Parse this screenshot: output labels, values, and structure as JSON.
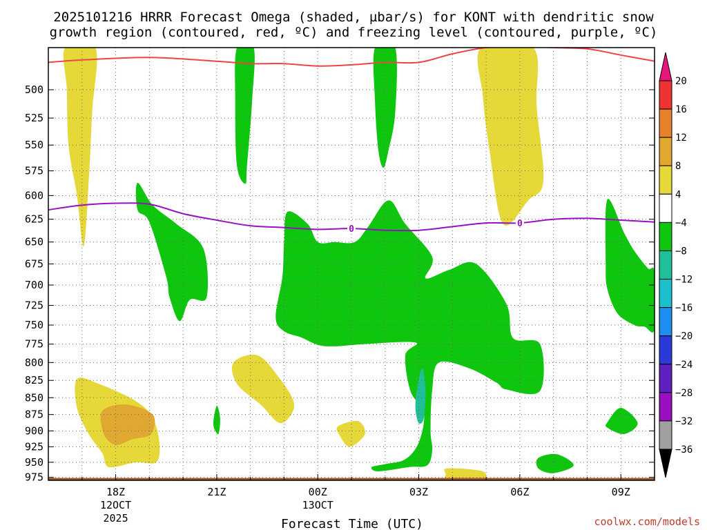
{
  "title_line1": "2025101216 HRRR Forecast Omega (shaded, µbar/s) for KONT with dendritic snow",
  "title_line2": "growth region (contoured, red, ºC) and freezing level (contoured, purple, ºC)",
  "credit": "coolwx.com/models",
  "chart_data": {
    "type": "contour",
    "title": "2025101216 HRRR Forecast Omega (shaded, µbar/s) for KONT with dendritic snow growth region (contoured, red, ºC) and freezing level (contoured, purple, ºC)",
    "xlabel": "Forecast Time (UTC)",
    "ylabel": "",
    "x_unit": "hours since 2025-10-12 16Z",
    "xlim": [
      0,
      18
    ],
    "ylim_hPa": [
      980,
      465
    ],
    "grid": true,
    "x_ticks": [
      {
        "x": 2,
        "lines": [
          "18Z",
          "12OCT",
          "2025"
        ]
      },
      {
        "x": 5,
        "lines": [
          "21Z"
        ]
      },
      {
        "x": 8,
        "lines": [
          "00Z",
          "13OCT"
        ]
      },
      {
        "x": 11,
        "lines": [
          "03Z"
        ]
      },
      {
        "x": 14,
        "lines": [
          "06Z"
        ]
      },
      {
        "x": 17,
        "lines": [
          "09Z"
        ]
      }
    ],
    "x_minor_ticks": [
      1,
      3,
      4,
      6,
      7,
      9,
      10,
      12,
      13,
      15,
      16,
      18
    ],
    "y_ticks": [
      500,
      525,
      550,
      575,
      600,
      625,
      650,
      675,
      700,
      725,
      750,
      775,
      800,
      825,
      850,
      875,
      900,
      925,
      950,
      975
    ],
    "colorbar": {
      "labels": [
        "20",
        "16",
        "12",
        "8",
        "4",
        "−4",
        "−8",
        "−12",
        "−16",
        "−20",
        "−24",
        "−28",
        "−32",
        "−36"
      ],
      "bins": [
        {
          "from": 20,
          "to": 16,
          "color": "#ee3333"
        },
        {
          "from": 16,
          "to": 12,
          "color": "#e8822a"
        },
        {
          "from": 12,
          "to": 8,
          "color": "#e0a830"
        },
        {
          "from": 8,
          "to": 4,
          "color": "#e6d838"
        },
        {
          "from": 4,
          "to": -4,
          "color": "#ffffff"
        },
        {
          "from": -4,
          "to": -8,
          "color": "#0fc60f"
        },
        {
          "from": -8,
          "to": -12,
          "color": "#1fbf9a"
        },
        {
          "from": -12,
          "to": -16,
          "color": "#1cc0cc"
        },
        {
          "from": -16,
          "to": -20,
          "color": "#1e8ff0"
        },
        {
          "from": -20,
          "to": -24,
          "color": "#2a3ad8"
        },
        {
          "from": -24,
          "to": -28,
          "color": "#6020c0"
        },
        {
          "from": -28,
          "to": -32,
          "color": "#9a10c0"
        },
        {
          "from": -32,
          "to": -36,
          "color": "#a0a0a0"
        }
      ],
      "top_arrow_color": "#e8157a",
      "bottom_arrow_color": "#000000"
    },
    "ground": {
      "top_hPa": 976,
      "color": "#a0582a"
    },
    "lines": [
      {
        "name": "dendritic snow growth region",
        "color": "#ee4444",
        "x": [
          0,
          1,
          3,
          5,
          6,
          7,
          8,
          9,
          10,
          11,
          12,
          13,
          14,
          15,
          16,
          17,
          18
        ],
        "p": [
          477,
          475,
          473,
          476,
          478,
          478,
          480,
          479,
          477,
          477,
          470,
          465,
          464,
          465,
          466,
          471,
          476
        ]
      },
      {
        "name": "freezing level",
        "label": "0",
        "color": "#9910c0",
        "x": [
          0,
          1,
          2,
          3,
          4,
          5,
          6,
          7,
          8,
          9,
          10,
          11,
          12,
          13,
          14,
          15,
          16,
          17,
          18
        ],
        "p": [
          615,
          610,
          608,
          609,
          619,
          626,
          632,
          634,
          636,
          635,
          637,
          637,
          633,
          629,
          629,
          625,
          624,
          626,
          628
        ]
      }
    ],
    "shaded_regions": [
      {
        "bin": "4 to 8",
        "color": "#e6d838",
        "points": [
          [
            0.5,
            465
          ],
          [
            1.4,
            465
          ],
          [
            1.3,
            520
          ],
          [
            1.2,
            585
          ],
          [
            1.05,
            655
          ],
          [
            0.85,
            600
          ],
          [
            0.6,
            550
          ],
          [
            0.55,
            500
          ]
        ]
      },
      {
        "bin": "4 to 8",
        "color": "#e6d838",
        "points": [
          [
            12.85,
            465
          ],
          [
            14.4,
            465
          ],
          [
            14.5,
            515
          ],
          [
            14.7,
            585
          ],
          [
            14.25,
            605
          ],
          [
            13.5,
            630
          ],
          [
            13.1,
            555
          ],
          [
            12.9,
            505
          ]
        ]
      },
      {
        "bin": "4 to 8",
        "color": "#e6d838",
        "points": [
          [
            0.85,
            823
          ],
          [
            1.5,
            830
          ],
          [
            2.6,
            855
          ],
          [
            3.1,
            880
          ],
          [
            3.3,
            920
          ],
          [
            3.2,
            950
          ],
          [
            2.6,
            950
          ],
          [
            1.8,
            958
          ],
          [
            1.6,
            935
          ],
          [
            1.2,
            905
          ],
          [
            0.85,
            865
          ]
        ]
      },
      {
        "bin": "4 to 8",
        "color": "#e6d838",
        "points": [
          [
            5.5,
            800
          ],
          [
            6.2,
            790
          ],
          [
            6.8,
            818
          ],
          [
            7.3,
            860
          ],
          [
            6.9,
            888
          ],
          [
            6.3,
            860
          ],
          [
            5.6,
            830
          ]
        ]
      },
      {
        "bin": "4 to 8",
        "color": "#e6d838",
        "points": [
          [
            8.6,
            893
          ],
          [
            9.2,
            885
          ],
          [
            9.4,
            905
          ],
          [
            8.95,
            925
          ],
          [
            8.65,
            907
          ]
        ]
      },
      {
        "bin": "4 to 8",
        "color": "#e6d838",
        "points": [
          [
            11.85,
            960
          ],
          [
            12.9,
            965
          ],
          [
            12.85,
            980
          ],
          [
            11.85,
            982
          ],
          [
            11.8,
            970
          ]
        ]
      },
      {
        "bin": "8 to 12",
        "color": "#e0a830",
        "points": [
          [
            1.6,
            870
          ],
          [
            2.3,
            860
          ],
          [
            3.1,
            875
          ],
          [
            3.05,
            905
          ],
          [
            2.5,
            913
          ],
          [
            2.0,
            922
          ],
          [
            1.65,
            905
          ]
        ]
      },
      {
        "bin": "-4 to -8",
        "color": "#0fc60f",
        "points": [
          [
            5.6,
            465
          ],
          [
            6.1,
            465
          ],
          [
            6.05,
            510
          ],
          [
            5.9,
            570
          ],
          [
            5.85,
            588
          ],
          [
            5.6,
            570
          ],
          [
            5.55,
            510
          ]
        ]
      },
      {
        "bin": "-4 to -8",
        "color": "#0fc60f",
        "points": [
          [
            9.7,
            465
          ],
          [
            10.3,
            465
          ],
          [
            10.3,
            520
          ],
          [
            10.1,
            555
          ],
          [
            9.95,
            572
          ],
          [
            9.8,
            555
          ],
          [
            9.7,
            510
          ]
        ]
      },
      {
        "bin": "-4 to -8",
        "color": "#0fc60f",
        "points": [
          [
            2.65,
            587
          ],
          [
            3.1,
            610
          ],
          [
            3.8,
            630
          ],
          [
            4.6,
            657
          ],
          [
            4.7,
            715
          ],
          [
            4.2,
            718
          ],
          [
            3.9,
            745
          ],
          [
            3.6,
            715
          ],
          [
            3.5,
            690
          ],
          [
            3.0,
            628
          ],
          [
            2.65,
            615
          ]
        ]
      },
      {
        "bin": "-4 to -8",
        "color": "#0fc60f",
        "points": [
          [
            7.1,
            617
          ],
          [
            7.7,
            630
          ],
          [
            8.0,
            650
          ],
          [
            8.5,
            650
          ],
          [
            9.1,
            650
          ],
          [
            9.5,
            633
          ],
          [
            10.1,
            605
          ],
          [
            10.6,
            630
          ],
          [
            11.4,
            667
          ],
          [
            11.2,
            692
          ],
          [
            11.9,
            682
          ],
          [
            12.7,
            675
          ],
          [
            13.6,
            723
          ],
          [
            13.8,
            767
          ],
          [
            14.6,
            775
          ],
          [
            14.6,
            840
          ],
          [
            13.6,
            838
          ],
          [
            13.3,
            828
          ],
          [
            12.5,
            808
          ],
          [
            11.6,
            800
          ],
          [
            11.4,
            838
          ],
          [
            11.35,
            900
          ],
          [
            11.4,
            930
          ],
          [
            11.25,
            955
          ],
          [
            10.7,
            958
          ],
          [
            9.8,
            965
          ],
          [
            9.6,
            958
          ],
          [
            10.0,
            953
          ],
          [
            10.6,
            945
          ],
          [
            11.0,
            918
          ],
          [
            11.15,
            873
          ],
          [
            10.75,
            840
          ],
          [
            10.6,
            790
          ],
          [
            10.9,
            773
          ],
          [
            9.4,
            775
          ],
          [
            8.5,
            778
          ],
          [
            8.0,
            776
          ],
          [
            7.5,
            766
          ],
          [
            7.0,
            758
          ],
          [
            6.75,
            740
          ],
          [
            6.95,
            690
          ],
          [
            7.0,
            650
          ]
        ]
      },
      {
        "bin": "-4 to -8",
        "color": "#0fc60f",
        "points": [
          [
            16.6,
            604
          ],
          [
            17.1,
            640
          ],
          [
            17.4,
            660
          ],
          [
            17.8,
            680
          ],
          [
            18.0,
            685
          ],
          [
            18.0,
            755
          ],
          [
            17.7,
            752
          ],
          [
            17.4,
            750
          ],
          [
            16.9,
            735
          ],
          [
            16.6,
            705
          ],
          [
            16.55,
            675
          ]
        ]
      },
      {
        "bin": "-4 to -8",
        "color": "#0fc60f",
        "points": [
          [
            16.6,
            887
          ],
          [
            17.0,
            865
          ],
          [
            17.5,
            888
          ],
          [
            17.1,
            905
          ],
          [
            16.6,
            895
          ]
        ]
      },
      {
        "bin": "-4 to -8",
        "color": "#0fc60f",
        "points": [
          [
            5.0,
            862
          ],
          [
            5.1,
            880
          ],
          [
            5.05,
            905
          ],
          [
            4.9,
            890
          ]
        ]
      },
      {
        "bin": "-4 to -8",
        "color": "#0fc60f",
        "points": [
          [
            14.55,
            943
          ],
          [
            15.1,
            937
          ],
          [
            15.6,
            955
          ],
          [
            15.0,
            968
          ],
          [
            14.55,
            960
          ]
        ]
      },
      {
        "bin": "-8 to -12",
        "color": "#1fbf9a",
        "points": [
          [
            10.95,
            837
          ],
          [
            11.1,
            808
          ],
          [
            11.2,
            838
          ],
          [
            11.15,
            880
          ],
          [
            11.0,
            888
          ],
          [
            10.9,
            866
          ]
        ]
      }
    ]
  }
}
